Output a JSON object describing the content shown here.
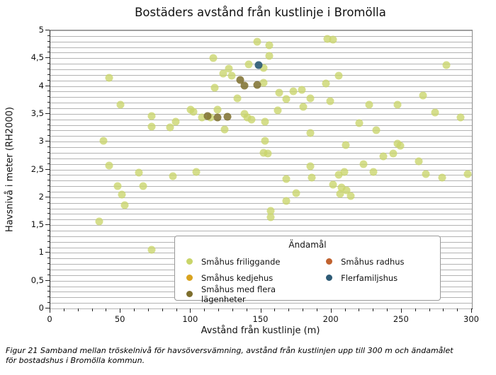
{
  "title": "Bostäders avstånd från kustlinje i Bromölla",
  "caption": "Figur 21 Samband mellan tröskelnivå för havsöversvämning, avstånd från kustlinjen upp till 300 m och ändamålet för bostadshus i Bromölla kommun.",
  "legend": {
    "title": "Ändamål",
    "items": [
      {
        "label": "Småhus friliggande",
        "color": "#c9d56a"
      },
      {
        "label": "Småhus kedjehus",
        "color": "#d9a31f"
      },
      {
        "label": "Småhus med flera lägenheter",
        "color": "#7d6e2d"
      },
      {
        "label": "Småhus radhus",
        "color": "#c0622f"
      },
      {
        "label": "Flerfamiljshus",
        "color": "#2e5b76"
      }
    ]
  },
  "chart_data": {
    "type": "scatter",
    "title": "Bostäders avstånd från kustlinje i Bromölla",
    "xlabel": "Avstånd från kustlinje (m)",
    "ylabel": "Havsnivå i meter (RH2000)",
    "xlim": [
      0,
      300
    ],
    "ylim": [
      0,
      5
    ],
    "x_major_ticks": [
      0,
      50,
      100,
      150,
      200,
      250,
      300
    ],
    "x_tick_labels": [
      "0",
      "50",
      "100",
      "150",
      "200",
      "250",
      "300"
    ],
    "x_minor_step": 10,
    "y_major_ticks": [
      0,
      0.5,
      1,
      1.5,
      2,
      2.5,
      3,
      3.5,
      4,
      4.5,
      5
    ],
    "y_tick_labels": [
      "0",
      "0,5",
      "1",
      "1,5",
      "2",
      "2,5",
      "3",
      "3,5",
      "4",
      "4,5",
      "5"
    ],
    "y_grid_step": 0.1,
    "grid": "horizontal-only",
    "grid_color": "#b3b3b3",
    "legend_position": "lower-right",
    "marker_diameter_px": 11,
    "series": [
      {
        "name": "Småhus friliggande",
        "color": "#c9d56a",
        "opacity": 0.78,
        "points": [
          [
            42,
            4.15
          ],
          [
            50,
            3.66
          ],
          [
            38,
            3.01
          ],
          [
            42,
            2.57
          ],
          [
            48,
            2.2
          ],
          [
            51,
            2.05
          ],
          [
            53,
            1.86
          ],
          [
            35,
            1.57
          ],
          [
            63,
            2.44
          ],
          [
            66,
            2.2
          ],
          [
            72,
            3.46
          ],
          [
            72,
            3.27
          ],
          [
            72,
            1.06
          ],
          [
            85,
            3.26
          ],
          [
            89,
            3.36
          ],
          [
            87,
            2.38
          ],
          [
            100,
            3.58
          ],
          [
            102,
            3.54
          ],
          [
            104,
            2.46
          ],
          [
            108,
            3.44
          ],
          [
            114,
            3.43
          ],
          [
            116,
            4.5
          ],
          [
            117,
            3.97
          ],
          [
            119,
            3.57
          ],
          [
            123,
            4.22
          ],
          [
            124,
            3.22
          ],
          [
            127,
            4.31
          ],
          [
            129,
            4.18
          ],
          [
            133,
            3.78
          ],
          [
            138,
            3.5
          ],
          [
            140,
            3.44
          ],
          [
            141,
            4.39
          ],
          [
            143,
            3.4
          ],
          [
            147,
            4.8
          ],
          [
            152,
            4.33
          ],
          [
            152,
            4.06
          ],
          [
            153,
            3.36
          ],
          [
            153,
            3.02
          ],
          [
            152,
            2.8
          ],
          [
            155,
            2.78
          ],
          [
            156,
            4.73
          ],
          [
            156,
            4.54
          ],
          [
            157,
            1.76
          ],
          [
            157,
            1.64
          ],
          [
            162,
            3.56
          ],
          [
            163,
            3.88
          ],
          [
            168,
            3.77
          ],
          [
            168,
            2.33
          ],
          [
            168,
            1.93
          ],
          [
            173,
            3.9
          ],
          [
            175,
            2.07
          ],
          [
            179,
            3.93
          ],
          [
            180,
            3.63
          ],
          [
            185,
            3.78
          ],
          [
            185,
            3.16
          ],
          [
            185,
            2.56
          ],
          [
            186,
            2.35
          ],
          [
            196,
            4.04
          ],
          [
            197,
            4.85
          ],
          [
            201,
            4.83
          ],
          [
            199,
            3.73
          ],
          [
            201,
            2.23
          ],
          [
            205,
            4.18
          ],
          [
            205,
            2.4
          ],
          [
            209,
            2.46
          ],
          [
            207,
            2.17
          ],
          [
            206,
            2.06
          ],
          [
            210,
            2.94
          ],
          [
            211,
            2.12
          ],
          [
            214,
            2.02
          ],
          [
            220,
            3.33
          ],
          [
            223,
            2.6
          ],
          [
            227,
            3.67
          ],
          [
            230,
            2.46
          ],
          [
            232,
            3.2
          ],
          [
            237,
            2.74
          ],
          [
            244,
            2.79
          ],
          [
            247,
            2.96
          ],
          [
            249,
            2.92
          ],
          [
            247,
            3.67
          ],
          [
            262,
            2.64
          ],
          [
            265,
            3.83
          ],
          [
            267,
            2.42
          ],
          [
            274,
            3.52
          ],
          [
            279,
            2.35
          ],
          [
            282,
            4.38
          ],
          [
            292,
            3.43
          ],
          [
            297,
            2.42
          ]
        ]
      },
      {
        "name": "Småhus kedjehus",
        "color": "#d9a31f",
        "opacity": 0.85,
        "points": []
      },
      {
        "name": "Småhus med flera lägenheter",
        "color": "#7d6e2d",
        "opacity": 0.85,
        "points": [
          [
            112,
            3.46
          ],
          [
            119,
            3.43
          ],
          [
            126,
            3.45
          ],
          [
            135,
            4.11
          ],
          [
            138,
            4.01
          ],
          [
            147,
            4.02
          ]
        ]
      },
      {
        "name": "Småhus radhus",
        "color": "#c0622f",
        "opacity": 0.85,
        "points": []
      },
      {
        "name": "Flerfamiljshus",
        "color": "#2e5b76",
        "opacity": 0.92,
        "points": [
          [
            148,
            4.38
          ]
        ]
      }
    ]
  }
}
